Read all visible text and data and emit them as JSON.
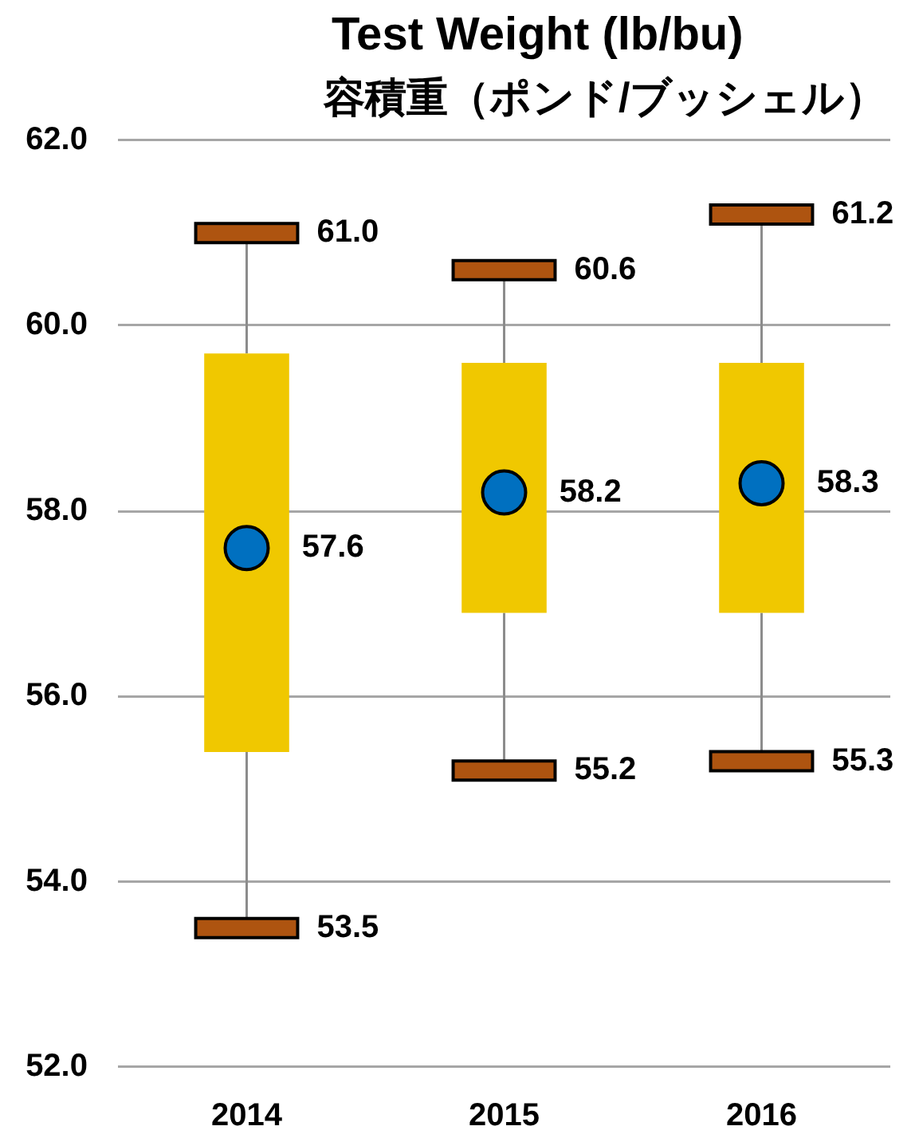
{
  "chart_data": {
    "type": "box",
    "title": "Test Weight (lb/bu)",
    "subtitle": "容積重（ポンド/ブッシェル）",
    "categories": [
      "2014",
      "2015",
      "2016"
    ],
    "series": [
      {
        "color": "#f0c800",
        "boxes": [
          {
            "low": 53.5,
            "q1": 55.4,
            "median": 57.6,
            "q3": 59.7,
            "high": 61.0
          },
          {
            "low": 55.2,
            "q1": 56.9,
            "median": 58.2,
            "q3": 59.6,
            "high": 60.6
          },
          {
            "low": 55.3,
            "q1": 56.9,
            "median": 58.3,
            "q3": 59.6,
            "high": 61.2
          }
        ]
      }
    ],
    "ylim": [
      52,
      62
    ],
    "yticks": [
      {
        "value": 52,
        "label": "52.0"
      },
      {
        "value": 54,
        "label": "54.0"
      },
      {
        "value": 56,
        "label": "56.0"
      },
      {
        "value": 58,
        "label": "58.0"
      },
      {
        "value": 60,
        "label": "60.0"
      },
      {
        "value": 62,
        "label": "62.0"
      }
    ],
    "grid": "y",
    "annotations": [
      {
        "text": "61.0",
        "x": "2014",
        "y": 61.0
      },
      {
        "text": "57.6",
        "x": "2014",
        "y": 57.6
      },
      {
        "text": "53.5",
        "x": "2014",
        "y": 53.5
      },
      {
        "text": "60.6",
        "x": "2015",
        "y": 60.6
      },
      {
        "text": "58.2",
        "x": "2015",
        "y": 58.2
      },
      {
        "text": "55.2",
        "x": "2015",
        "y": 55.2
      },
      {
        "text": "61.2",
        "x": "2016",
        "y": 61.2
      },
      {
        "text": "58.3",
        "x": "2016",
        "y": 58.3
      },
      {
        "text": "55.3",
        "x": "2016",
        "y": 55.3
      }
    ]
  }
}
